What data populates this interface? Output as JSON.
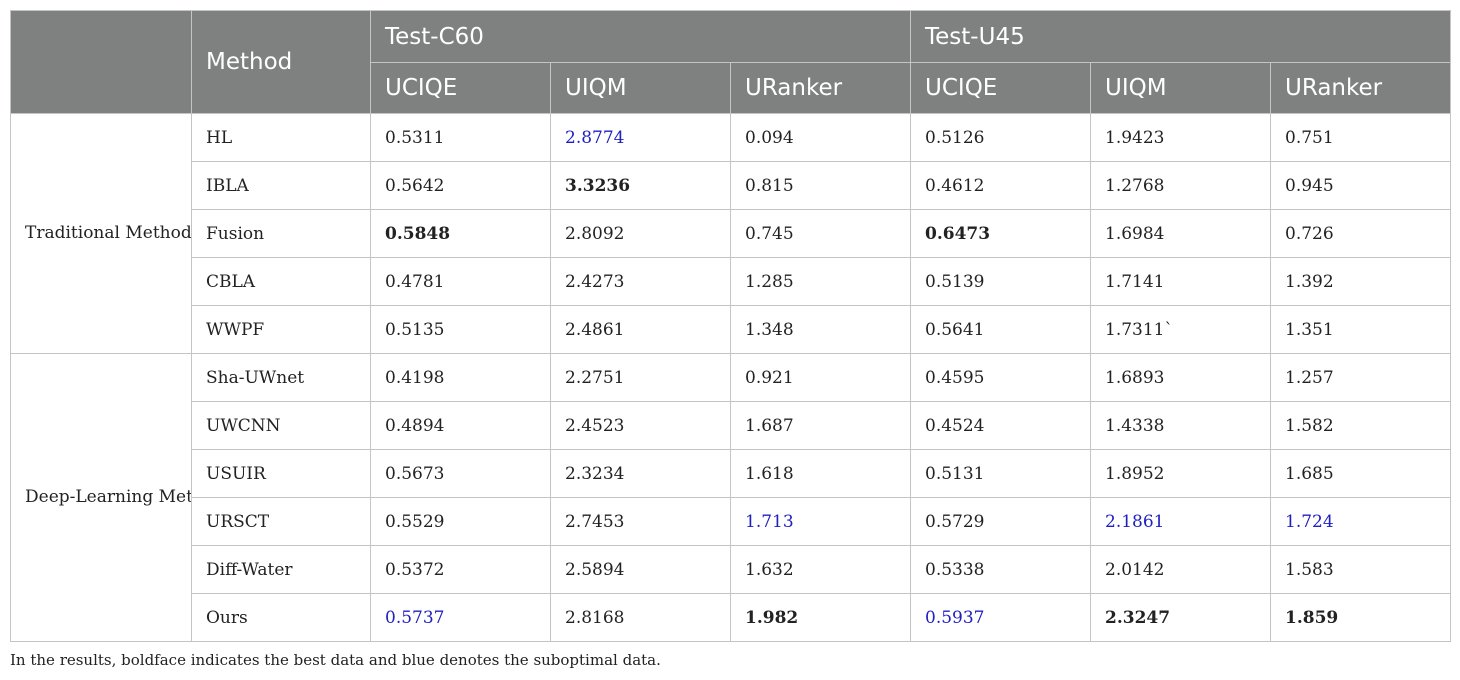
{
  "header": {
    "method": "Method",
    "group1": "Test-C60",
    "group2": "Test-U45",
    "metrics": [
      "UCIQE",
      "UIQM",
      "URanker",
      "UCIQE",
      "UIQM",
      "URanker"
    ]
  },
  "groups": [
    "Traditional Method",
    "Deep-Learning Method"
  ],
  "rows": [
    {
      "method": "HL",
      "values": [
        "0.5311",
        "2.8774",
        "0.094",
        "0.5126",
        "1.9423",
        "0.751"
      ],
      "style": [
        "",
        "second",
        "",
        "",
        "",
        ""
      ]
    },
    {
      "method": "IBLA",
      "values": [
        "0.5642",
        "3.3236",
        "0.815",
        "0.4612",
        "1.2768",
        "0.945"
      ],
      "style": [
        "",
        "best",
        "",
        "",
        "",
        ""
      ]
    },
    {
      "method": "Fusion",
      "values": [
        "0.5848",
        "2.8092",
        "0.745",
        "0.6473",
        "1.6984",
        "0.726"
      ],
      "style": [
        "best",
        "",
        "",
        "best",
        "",
        ""
      ]
    },
    {
      "method": "CBLA",
      "values": [
        "0.4781",
        "2.4273",
        "1.285",
        "0.5139",
        "1.7141",
        "1.392"
      ],
      "style": [
        "",
        "",
        "",
        "",
        "",
        ""
      ]
    },
    {
      "method": "WWPF",
      "values": [
        "0.5135",
        "2.4861",
        "1.348",
        "0.5641",
        "1.7311`",
        "1.351"
      ],
      "style": [
        "",
        "",
        "",
        "",
        "",
        ""
      ]
    },
    {
      "method": "Sha-UWnet",
      "values": [
        "0.4198",
        "2.2751",
        "0.921",
        "0.4595",
        "1.6893",
        "1.257"
      ],
      "style": [
        "",
        "",
        "",
        "",
        "",
        ""
      ]
    },
    {
      "method": "UWCNN",
      "values": [
        "0.4894",
        "2.4523",
        "1.687",
        "0.4524",
        "1.4338",
        "1.582"
      ],
      "style": [
        "",
        "",
        "",
        "",
        "",
        ""
      ]
    },
    {
      "method": "USUIR",
      "values": [
        "0.5673",
        "2.3234",
        "1.618",
        "0.5131",
        "1.8952",
        "1.685"
      ],
      "style": [
        "",
        "",
        "",
        "",
        "",
        ""
      ]
    },
    {
      "method": "URSCT",
      "values": [
        "0.5529",
        "2.7453",
        "1.713",
        "0.5729",
        "2.1861",
        "1.724"
      ],
      "style": [
        "",
        "",
        "second",
        "",
        "second",
        "second"
      ]
    },
    {
      "method": "Diff-Water",
      "values": [
        "0.5372",
        "2.5894",
        "1.632",
        "0.5338",
        "2.0142",
        "1.583"
      ],
      "style": [
        "",
        "",
        "",
        "",
        "",
        ""
      ]
    },
    {
      "method": "Ours",
      "values": [
        "0.5737",
        "2.8168",
        "1.982",
        "0.5937",
        "2.3247",
        "1.859"
      ],
      "style": [
        "second",
        "",
        "best",
        "second",
        "best",
        "best"
      ]
    }
  ],
  "footnote": "In the results, boldface indicates the best data and blue denotes the suboptimal data.",
  "colors": {
    "header_bg": "#7f8180",
    "best": "#222222",
    "second": "#2020c0",
    "border": "#c4c4c4"
  }
}
